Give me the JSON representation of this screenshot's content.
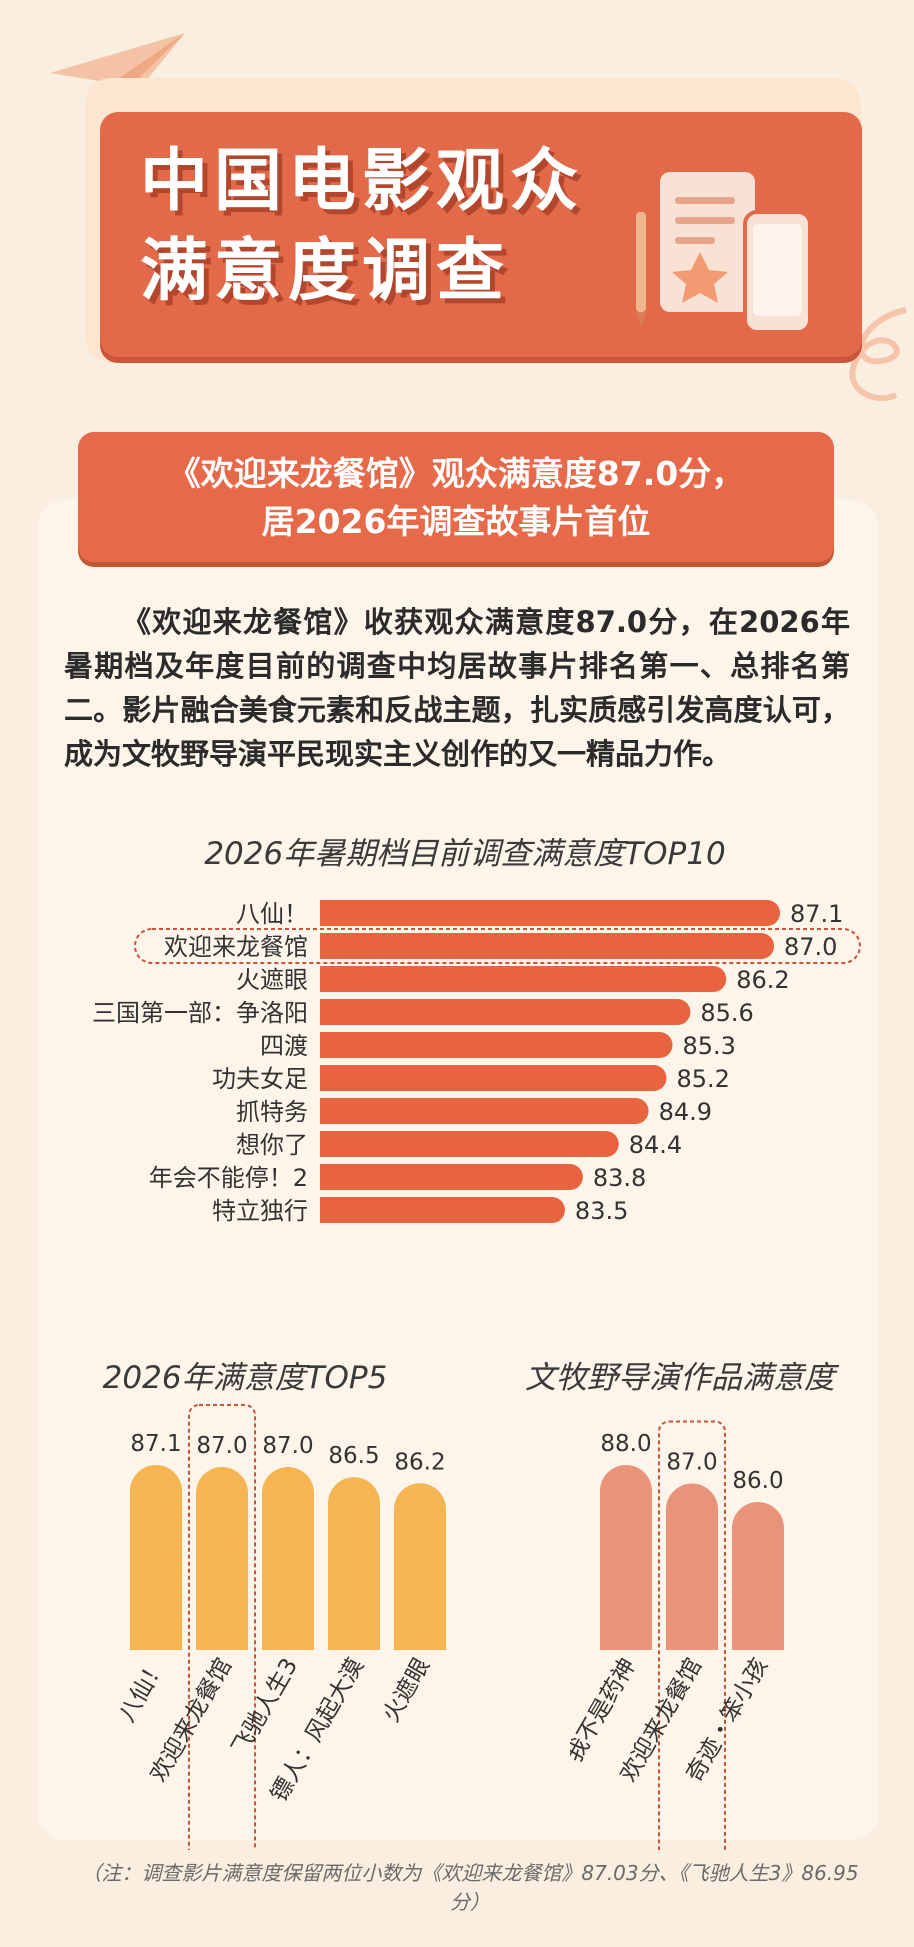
{
  "title": {
    "line1": "中国电影观众",
    "line2": "满意度调查"
  },
  "headline": {
    "line1": "《欢迎来龙餐馆》观众满意度87.0分，",
    "line2": "居2026年调查故事片首位"
  },
  "paragraph": "《欢迎来龙餐馆》收获观众满意度87.0分，在2026年暑期档及年度目前的调查中均居故事片排名第一、总排名第二。影片融合美食元素和反战主题，扎实质感引发高度认可，成为文牧野导演平民现实主义创作的又一精品力作。",
  "note": "（注：调查影片满意度保留两位小数为《欢迎来龙餐馆》87.03分、《飞驰人生3》86.95分）",
  "colors": {
    "accent": "#e36a48",
    "bar_orange": "#e8633f",
    "bar_yellow": "#f5b553",
    "bar_salmon": "#e9937a",
    "highlight_border": "#c8543a",
    "background": "#f9eedf"
  },
  "chart_data": [
    {
      "type": "bar",
      "orientation": "horizontal",
      "title": "2026年暑期档目前调查满意度TOP10",
      "categories": [
        "八仙！",
        "欢迎来龙餐馆",
        "火遮眼",
        "三国第一部：争洛阳",
        "四渡",
        "功夫女足",
        "抓特务",
        "想你了",
        "年会不能停！2",
        "特立独行"
      ],
      "values": [
        87.1,
        87.0,
        86.2,
        85.6,
        85.3,
        85.2,
        84.9,
        84.4,
        83.8,
        83.5
      ],
      "value_labels": [
        "87.1",
        "87.0",
        "86.2",
        "85.6",
        "85.3",
        "85.2",
        "84.9",
        "84.4",
        "83.8",
        "83.5"
      ],
      "highlight_index": 1,
      "xlim": [
        79.4,
        87.1
      ]
    },
    {
      "type": "bar",
      "orientation": "vertical",
      "title": "2026年满意度TOP5",
      "categories": [
        "八仙！",
        "欢迎来龙餐馆",
        "飞驰人生3",
        "镖人：风起大漠",
        "火遮眼"
      ],
      "values": [
        87.1,
        87.0,
        87.0,
        86.5,
        86.2
      ],
      "value_labels": [
        "87.1",
        "87.0",
        "87.0",
        "86.5",
        "86.2"
      ],
      "highlight_index": 1,
      "ylim": [
        78.0,
        87.1
      ]
    },
    {
      "type": "bar",
      "orientation": "vertical",
      "title": "文牧野导演作品满意度",
      "categories": [
        "我不是药神",
        "欢迎来龙餐馆",
        "奇迹・笨小孩"
      ],
      "values": [
        88.0,
        87.0,
        86.0
      ],
      "value_labels": [
        "88.0",
        "87.0",
        "86.0"
      ],
      "highlight_index": 1,
      "ylim": [
        78.0,
        88.0
      ]
    }
  ]
}
